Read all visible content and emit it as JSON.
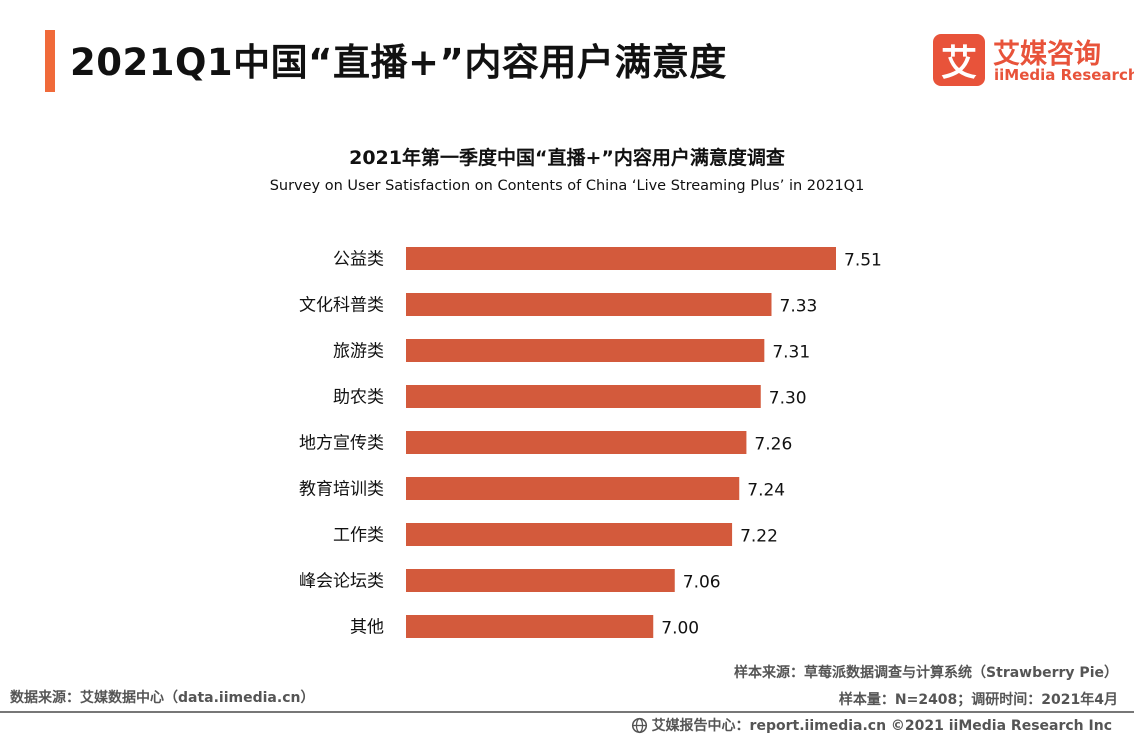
{
  "header": {
    "title": "2021Q1中国“直播+”内容用户满意度",
    "accent_color": "#f06a3a"
  },
  "logo": {
    "mark": "艾",
    "name_cn": "艾媒咨询",
    "name_en": "iiMedia Research",
    "color": "#e8533a"
  },
  "chart_data": {
    "type": "bar",
    "orientation": "horizontal",
    "title": "2021年第一季度中国“直播+”内容用户满意度调查",
    "subtitle": "Survey on User Satisfaction on Contents of China ‘Live Streaming Plus’ in 2021Q1",
    "categories": [
      "公益类",
      "文化科普类",
      "旅游类",
      "助农类",
      "地方宣传类",
      "教育培训类",
      "工作类",
      "峰会论坛类",
      "其他"
    ],
    "values": [
      7.51,
      7.33,
      7.31,
      7.3,
      7.26,
      7.24,
      7.22,
      7.06,
      7.0
    ],
    "value_labels": [
      "7.51",
      "7.33",
      "7.31",
      "7.30",
      "7.26",
      "7.24",
      "7.22",
      "7.06",
      "7.00"
    ],
    "bar_color": "#d35a3c",
    "value_axis_range": [
      6.31,
      7.51
    ],
    "xlabel": "",
    "ylabel": "",
    "grid": false
  },
  "notes": {
    "sample_source": "样本来源：草莓派数据调查与计算系统（Strawberry Pie）",
    "sample_size": "样本量：N=2408；调研时间：2021年4月",
    "data_source": "数据来源：艾媒数据中心（data.iimedia.cn）"
  },
  "footer": {
    "text": "艾媒报告中心：report.iimedia.cn ©2021  iiMedia Research Inc",
    "icon": "globe-icon"
  }
}
